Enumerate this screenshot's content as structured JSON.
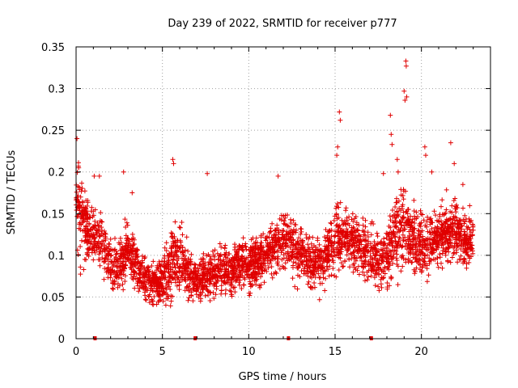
{
  "chart_data": {
    "type": "scatter",
    "title": "Day 239 of 2022, SRMTID for receiver p777",
    "xlabel": "GPS time / hours",
    "ylabel": "SRMTID / TECUs",
    "xlim": [
      0,
      24
    ],
    "ylim": [
      0,
      0.35
    ],
    "xticks": [
      0,
      5,
      10,
      15,
      20
    ],
    "xtick_labels": [
      "0",
      "5",
      "10",
      "15",
      "20"
    ],
    "yticks": [
      0,
      0.05,
      0.1,
      0.15,
      0.2,
      0.25,
      0.3,
      0.35
    ],
    "ytick_labels": [
      "0",
      "0.05",
      "0.1",
      "0.15",
      "0.2",
      "0.25",
      "0.3",
      "0.35"
    ],
    "grid": true,
    "marker": "+",
    "color": "#e00000",
    "zero_markers_x": [
      1.1,
      6.9,
      12.3,
      17.1
    ],
    "series": [
      {
        "name": "SRMTID",
        "data_profile": {
          "x_range": [
            0,
            23
          ],
          "n_points": 3400,
          "envelope": [
            [
              0.0,
              0.17,
              0.06
            ],
            [
              0.5,
              0.135,
              0.035
            ],
            [
              1.0,
              0.13,
              0.03
            ],
            [
              1.5,
              0.12,
              0.03
            ],
            [
              2.0,
              0.085,
              0.025
            ],
            [
              2.5,
              0.09,
              0.025
            ],
            [
              3.0,
              0.11,
              0.03
            ],
            [
              3.5,
              0.09,
              0.025
            ],
            [
              4.0,
              0.07,
              0.02
            ],
            [
              4.5,
              0.065,
              0.02
            ],
            [
              5.0,
              0.07,
              0.025
            ],
            [
              5.5,
              0.09,
              0.035
            ],
            [
              6.0,
              0.1,
              0.03
            ],
            [
              6.5,
              0.08,
              0.025
            ],
            [
              7.0,
              0.07,
              0.02
            ],
            [
              7.5,
              0.075,
              0.025
            ],
            [
              8.0,
              0.08,
              0.025
            ],
            [
              8.5,
              0.085,
              0.025
            ],
            [
              9.0,
              0.08,
              0.025
            ],
            [
              9.5,
              0.09,
              0.025
            ],
            [
              10.0,
              0.09,
              0.025
            ],
            [
              10.5,
              0.095,
              0.025
            ],
            [
              11.0,
              0.1,
              0.025
            ],
            [
              11.5,
              0.11,
              0.03
            ],
            [
              12.0,
              0.12,
              0.03
            ],
            [
              12.5,
              0.11,
              0.03
            ],
            [
              13.0,
              0.1,
              0.03
            ],
            [
              13.5,
              0.09,
              0.025
            ],
            [
              14.0,
              0.09,
              0.025
            ],
            [
              14.5,
              0.1,
              0.03
            ],
            [
              15.0,
              0.12,
              0.035
            ],
            [
              15.5,
              0.12,
              0.03
            ],
            [
              16.0,
              0.12,
              0.03
            ],
            [
              16.5,
              0.11,
              0.03
            ],
            [
              17.0,
              0.1,
              0.03
            ],
            [
              17.5,
              0.095,
              0.03
            ],
            [
              18.0,
              0.1,
              0.035
            ],
            [
              18.5,
              0.12,
              0.04
            ],
            [
              19.0,
              0.14,
              0.05
            ],
            [
              19.5,
              0.12,
              0.035
            ],
            [
              20.0,
              0.11,
              0.03
            ],
            [
              20.5,
              0.12,
              0.03
            ],
            [
              21.0,
              0.12,
              0.03
            ],
            [
              21.5,
              0.13,
              0.035
            ],
            [
              22.0,
              0.13,
              0.035
            ],
            [
              22.5,
              0.12,
              0.03
            ],
            [
              23.0,
              0.12,
              0.03
            ]
          ],
          "spikes": [
            [
              0.05,
              0.24
            ],
            [
              0.15,
              0.205
            ],
            [
              1.05,
              0.195
            ],
            [
              1.35,
              0.195
            ],
            [
              2.75,
              0.2
            ],
            [
              3.25,
              0.175
            ],
            [
              5.6,
              0.215
            ],
            [
              5.65,
              0.21
            ],
            [
              7.6,
              0.198
            ],
            [
              11.7,
              0.195
            ],
            [
              15.1,
              0.22
            ],
            [
              15.25,
              0.272
            ],
            [
              15.3,
              0.262
            ],
            [
              15.15,
              0.23
            ],
            [
              17.8,
              0.198
            ],
            [
              18.2,
              0.268
            ],
            [
              18.25,
              0.245
            ],
            [
              18.3,
              0.233
            ],
            [
              18.6,
              0.215
            ],
            [
              18.65,
              0.2
            ],
            [
              19.0,
              0.297
            ],
            [
              19.05,
              0.286
            ],
            [
              19.1,
              0.333
            ],
            [
              19.12,
              0.327
            ],
            [
              19.15,
              0.29
            ],
            [
              20.2,
              0.23
            ],
            [
              20.25,
              0.22
            ],
            [
              20.6,
              0.2
            ],
            [
              21.7,
              0.235
            ],
            [
              21.9,
              0.21
            ],
            [
              22.4,
              0.185
            ]
          ]
        }
      }
    ]
  }
}
